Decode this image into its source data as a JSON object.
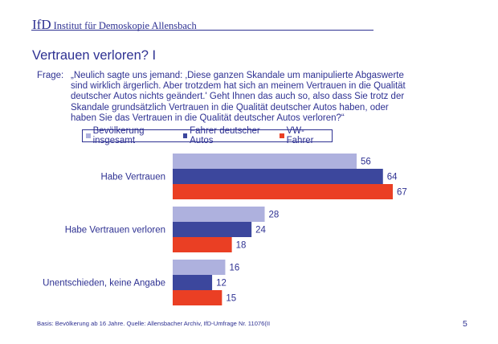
{
  "header": {
    "logo": "IfD",
    "institute": "Institut für Demoskopie Allensbach"
  },
  "title": "Vertrauen verloren? I",
  "question": {
    "label": "Frage:",
    "text": "„Neulich sagte uns jemand: ‚Diese ganzen Skandale um manipulierte Abgaswerte sind wirklich ärgerlich. Aber trotzdem hat sich an meinem Vertrauen in die Qualität deutscher Autos nichts geändert.' Geht Ihnen das auch so, also dass Sie trotz der Skandale grundsätzlich Vertrauen in die Qualität deutscher Autos haben, oder haben Sie das Vertrauen in die Qualität deutscher Autos verloren?“"
  },
  "footer": {
    "basis": "Basis: Bevölkerung ab 16 Jahre. Quelle: Allensbacher Archiv, IfD-Umfrage Nr. 11076(II",
    "page_number": "5"
  },
  "chart_data": {
    "type": "bar",
    "orientation": "horizontal",
    "title": "Vertrauen verloren? I",
    "xlabel": "",
    "ylabel": "",
    "xlim": [
      0,
      100
    ],
    "grid": false,
    "legend_position": "top",
    "categories": [
      "Habe Vertrauen",
      "Habe Vertrauen verloren",
      "Unentschieden, keine Angabe"
    ],
    "series": [
      {
        "name": "Bevölkerung insgesamt",
        "color": "#aeb1de",
        "values": [
          56,
          28,
          16
        ]
      },
      {
        "name": "Fahrer deutscher Autos",
        "color": "#3c479d",
        "values": [
          64,
          24,
          12
        ]
      },
      {
        "name": "VW-Fahrer",
        "color": "#ea3f24",
        "values": [
          67,
          18,
          15
        ]
      }
    ]
  }
}
